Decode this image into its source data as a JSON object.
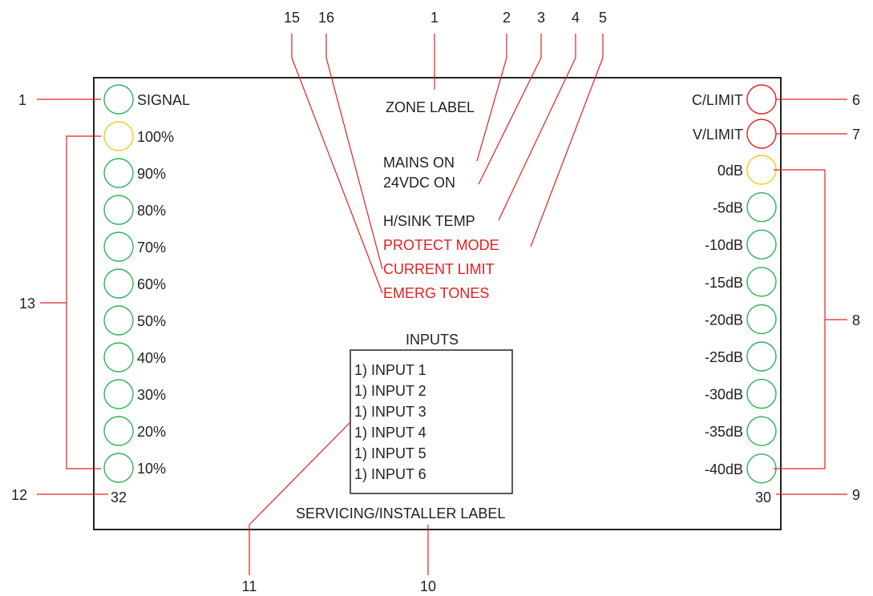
{
  "colors": {
    "panel_border": "#222222",
    "leader_line": "#e02020",
    "led_green": "#2bb35a",
    "led_yellow": "#f0cc1c",
    "led_red": "#e02020",
    "warning_text": "#e02020",
    "text": "#222222"
  },
  "left_meter": {
    "signal_label": "SIGNAL",
    "levels": [
      "100%",
      "90%",
      "80%",
      "70%",
      "60%",
      "50%",
      "40%",
      "30%",
      "20%",
      "10%"
    ],
    "level_colors": [
      "yellow",
      "green",
      "green",
      "green",
      "green",
      "green",
      "green",
      "green",
      "green",
      "green"
    ],
    "bottom_number": "32"
  },
  "right_meter": {
    "c_limit_label": "C/LIMIT",
    "v_limit_label": "V/LIMIT",
    "levels": [
      "0dB",
      "-5dB",
      "-10dB",
      "-15dB",
      "-20dB",
      "-25dB",
      "-30dB",
      "-35dB",
      "-40dB"
    ],
    "level_colors": [
      "yellow",
      "green",
      "green",
      "green",
      "green",
      "green",
      "green",
      "green",
      "green"
    ],
    "bottom_number": "30"
  },
  "center": {
    "zone_label": "ZONE LABEL",
    "mains_on": "MAINS ON",
    "dc_on": "24VDC ON",
    "heatsink_temp": "H/SINK TEMP",
    "protect_mode": "PROTECT MODE",
    "current_limit": "CURRENT LIMIT",
    "emerg_tones": "EMERG TONES",
    "inputs_title": "INPUTS",
    "inputs": [
      "1) INPUT 1",
      "1) INPUT 2",
      "1) INPUT 3",
      "1) INPUT 4",
      "1) INPUT 5",
      "1) INPUT 6"
    ],
    "servicing_label": "SERVICING/INSTALLER  LABEL"
  },
  "callouts": {
    "top": [
      "15",
      "16",
      "1",
      "2",
      "3",
      "4",
      "5"
    ],
    "left_signal": "1",
    "left_meter": "13",
    "left_bottom": "12",
    "right_c_limit": "6",
    "right_v_limit": "7",
    "right_meter": "8",
    "right_bottom": "9",
    "bottom_inputs": "11",
    "bottom_servicing": "10"
  }
}
